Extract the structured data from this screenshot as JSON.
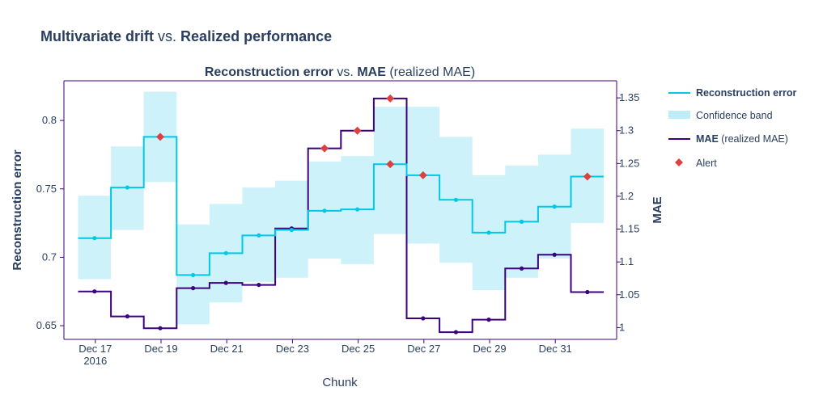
{
  "title_part1": "Multivariate drift",
  "title_vs": " vs. ",
  "title_part2": "Realized performance",
  "subtitle_bold1": "Reconstruction error",
  "subtitle_vs": " vs. ",
  "subtitle_bold2": "MAE",
  "subtitle_rest": " (realized MAE)",
  "legend": {
    "recon_label": "Reconstruction error",
    "band_label": "Confidence band",
    "mae_label_bold": "MAE",
    "mae_label_rest": " (realized MAE)",
    "alert_label": "Alert"
  },
  "colors": {
    "recon": "#00c8e5",
    "band": "#bdeef7",
    "mae": "#3b0280",
    "alert": "#dd4040",
    "axis": "#3b0280"
  },
  "chart_data": {
    "type": "line",
    "title": "Reconstruction error vs. MAE (realized MAE)",
    "xlabel": "Chunk",
    "x_tick_labels": [
      "Dec 17",
      "Dec 19",
      "Dec 21",
      "Dec 23",
      "Dec 25",
      "Dec 27",
      "Dec 29",
      "Dec 31"
    ],
    "x_tick_year": "2016",
    "x": [
      "2016-12-16",
      "2016-12-17",
      "2016-12-18",
      "2016-12-19",
      "2016-12-20",
      "2016-12-21",
      "2016-12-22",
      "2016-12-23",
      "2016-12-24",
      "2016-12-25",
      "2016-12-26",
      "2016-12-27",
      "2016-12-28",
      "2016-12-29",
      "2016-12-30",
      "2016-12-31",
      "2017-01-01"
    ],
    "y_left": {
      "label": "Reconstruction error",
      "ylim": [
        0.64,
        0.829
      ],
      "ticks": [
        0.65,
        0.7,
        0.75,
        0.8
      ],
      "tick_labels": [
        "0.65",
        "0.7",
        "0.75",
        "0.8"
      ]
    },
    "y_right": {
      "label": "MAE",
      "ylim": [
        0.982,
        1.376
      ],
      "ticks": [
        1,
        1.05,
        1.1,
        1.15,
        1.2,
        1.25,
        1.3,
        1.35
      ],
      "tick_labels": [
        "1",
        "1.05",
        "1.1",
        "1.15",
        "1.2",
        "1.25",
        "1.3",
        "1.35"
      ]
    },
    "series": [
      {
        "name": "Reconstruction error",
        "axis": "left",
        "step": true,
        "values": [
          0.714,
          0.751,
          0.788,
          0.687,
          0.703,
          0.716,
          0.72,
          0.734,
          0.735,
          0.768,
          0.76,
          0.742,
          0.718,
          0.726,
          0.737,
          0.759,
          0.759
        ],
        "band_upper": [
          0.745,
          0.781,
          0.821,
          0.724,
          0.739,
          0.751,
          0.756,
          0.77,
          0.774,
          0.81,
          0.81,
          0.788,
          0.76,
          0.767,
          0.775,
          0.794,
          0.794
        ],
        "band_lower": [
          0.684,
          0.72,
          0.755,
          0.651,
          0.667,
          0.682,
          0.685,
          0.699,
          0.695,
          0.717,
          0.71,
          0.696,
          0.676,
          0.685,
          0.699,
          0.725,
          0.725
        ],
        "alerts": [
          false,
          false,
          true,
          false,
          false,
          false,
          false,
          false,
          false,
          true,
          true,
          false,
          false,
          false,
          false,
          true,
          false
        ]
      },
      {
        "name": "MAE (realized MAE)",
        "axis": "right",
        "step": true,
        "values": [
          1.055,
          1.017,
          0.999,
          1.06,
          1.068,
          1.065,
          1.151,
          1.273,
          1.3,
          1.349,
          1.014,
          0.993,
          1.012,
          1.09,
          1.111,
          1.054,
          1.054
        ],
        "alerts": [
          false,
          false,
          false,
          false,
          false,
          false,
          false,
          true,
          true,
          true,
          false,
          false,
          false,
          false,
          false,
          false,
          false
        ]
      }
    ],
    "legend_position": "right",
    "grid": false
  }
}
